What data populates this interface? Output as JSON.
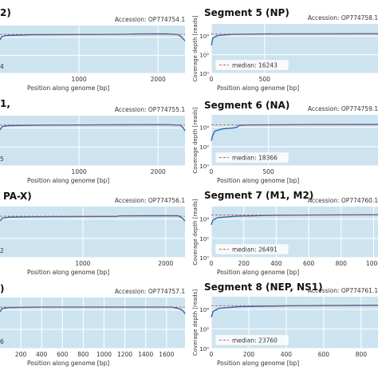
{
  "chart_data": [
    {
      "type": "area",
      "panel": "left-1",
      "title": "2)",
      "accession": "Accession: OP774754.1",
      "xlabel": "Position along genome [bp]",
      "ylabel": "",
      "xlim": [
        0,
        2341
      ],
      "xticks": [
        1000,
        2000
      ],
      "ylog": true,
      "ylim_log10": [
        0,
        5.3
      ],
      "y_tick_labels": [],
      "median_label": "",
      "median_value_log10": 4.32,
      "leftover_text": "4",
      "profile": [
        [
          0,
          3.7
        ],
        [
          20,
          4.05
        ],
        [
          80,
          4.2
        ],
        [
          400,
          4.28
        ],
        [
          1000,
          4.3
        ],
        [
          1500,
          4.32
        ],
        [
          1750,
          4.36
        ],
        [
          2100,
          4.38
        ],
        [
          2250,
          4.3
        ],
        [
          2300,
          4.0
        ],
        [
          2341,
          3.6
        ]
      ],
      "grid": true
    },
    {
      "type": "area",
      "panel": "left-2",
      "title": "1,",
      "accession": "Accession: OP774755.1",
      "xlabel": "Position along genome [bp]",
      "ylabel": "",
      "xlim": [
        0,
        2341
      ],
      "xticks": [
        1000,
        2000
      ],
      "ylog": true,
      "ylim_log10": [
        0,
        5.3
      ],
      "y_tick_labels": [],
      "median_label": "",
      "median_value_log10": 4.32,
      "leftover_text": "5",
      "profile": [
        [
          0,
          3.8
        ],
        [
          30,
          4.15
        ],
        [
          100,
          4.25
        ],
        [
          500,
          4.3
        ],
        [
          1500,
          4.33
        ],
        [
          2100,
          4.35
        ],
        [
          2280,
          4.3
        ],
        [
          2320,
          4.0
        ],
        [
          2341,
          3.7
        ]
      ],
      "grid": true
    },
    {
      "type": "area",
      "panel": "left-3",
      "title": "PA-X)",
      "accession": "Accession: OP774756.1",
      "xlabel": "Position along genome [bp]",
      "ylabel": "",
      "xlim": [
        0,
        2233
      ],
      "xticks": [
        1000,
        2000
      ],
      "ylog": true,
      "ylim_log10": [
        0,
        5.3
      ],
      "y_tick_labels": [],
      "median_label": "",
      "median_value_log10": 4.3,
      "leftover_text": "2",
      "profile": [
        [
          0,
          3.8
        ],
        [
          30,
          4.1
        ],
        [
          100,
          4.2
        ],
        [
          500,
          4.25
        ],
        [
          1400,
          4.27
        ],
        [
          1450,
          4.33
        ],
        [
          1800,
          4.35
        ],
        [
          2150,
          4.35
        ],
        [
          2200,
          4.1
        ],
        [
          2233,
          3.8
        ]
      ],
      "grid": true
    },
    {
      "type": "area",
      "panel": "left-4",
      "title": ")",
      "accession": "Accession: OP774757.1",
      "xlabel": "Position along genome [bp]",
      "ylabel": "",
      "xlim": [
        0,
        1778
      ],
      "xticks": [
        200,
        400,
        600,
        800,
        1000,
        1200,
        1400,
        1600
      ],
      "ylog": true,
      "ylim_log10": [
        0,
        5.3
      ],
      "y_tick_labels": [],
      "median_label": "",
      "median_value_log10": 4.3,
      "leftover_text": "6",
      "profile": [
        [
          0,
          3.8
        ],
        [
          20,
          4.15
        ],
        [
          80,
          4.25
        ],
        [
          400,
          4.3
        ],
        [
          1200,
          4.3
        ],
        [
          1650,
          4.3
        ],
        [
          1720,
          4.15
        ],
        [
          1760,
          3.9
        ],
        [
          1778,
          3.6
        ]
      ],
      "grid": true
    },
    {
      "type": "area",
      "panel": "right-1",
      "title": "Segment 5 (NP)",
      "accession": "Accession: OP774758.1",
      "xlabel": "Position along genome [bp]",
      "ylabel": "Coverage depth [reads]",
      "xlim": [
        0,
        1565
      ],
      "xticks": [
        0,
        500
      ],
      "ylog": true,
      "ylim_log10": [
        0,
        5.3
      ],
      "y_tick_labels": [
        {
          "exp": 0,
          "label": "10⁰"
        },
        {
          "exp": 2,
          "label": "10²"
        },
        {
          "exp": 4,
          "label": "10⁴"
        }
      ],
      "median_label": "median: 16243",
      "median_value_log10": 4.21,
      "profile": [
        [
          0,
          3.0
        ],
        [
          15,
          3.8
        ],
        [
          60,
          4.05
        ],
        [
          200,
          4.18
        ],
        [
          500,
          4.22
        ],
        [
          1000,
          4.24
        ],
        [
          1400,
          4.25
        ],
        [
          1565,
          4.25
        ]
      ],
      "grid": true
    },
    {
      "type": "area",
      "panel": "right-2",
      "title": "Segment 6 (NA)",
      "accession": "Accession: OP774759.1",
      "xlabel": "Position along genome [bp]",
      "ylabel": "Coverage depth [reads]",
      "xlim": [
        0,
        1458
      ],
      "xticks": [
        0,
        500
      ],
      "ylog": true,
      "ylim_log10": [
        0,
        5.3
      ],
      "y_tick_labels": [
        {
          "exp": 0,
          "label": "10⁰"
        },
        {
          "exp": 2,
          "label": "10²"
        },
        {
          "exp": 4,
          "label": "10⁴"
        }
      ],
      "median_label": "median: 18366",
      "median_value_log10": 4.26,
      "profile": [
        [
          0,
          2.6
        ],
        [
          10,
          3.1
        ],
        [
          30,
          3.6
        ],
        [
          100,
          3.85
        ],
        [
          200,
          3.95
        ],
        [
          230,
          4.05
        ],
        [
          240,
          4.2
        ],
        [
          300,
          4.25
        ],
        [
          800,
          4.28
        ],
        [
          1458,
          4.3
        ]
      ],
      "grid": true
    },
    {
      "type": "area",
      "panel": "right-3",
      "title": "Segment 7 (M1, M2)",
      "accession": "Accession: OP774760.1",
      "xlabel": "Position along genome [bp]",
      "ylabel": "Coverage depth [reads]",
      "xlim": [
        0,
        1027
      ],
      "xticks": [
        0,
        200,
        400,
        600,
        800,
        1000
      ],
      "ylog": true,
      "ylim_log10": [
        0,
        5.3
      ],
      "y_tick_labels": [
        {
          "exp": 0,
          "label": "10⁰"
        },
        {
          "exp": 2,
          "label": "10²"
        },
        {
          "exp": 4,
          "label": "10⁴"
        }
      ],
      "median_label": "median: 26491",
      "median_value_log10": 4.42,
      "profile": [
        [
          0,
          3.4
        ],
        [
          10,
          3.9
        ],
        [
          40,
          4.15
        ],
        [
          150,
          4.3
        ],
        [
          400,
          4.4
        ],
        [
          800,
          4.44
        ],
        [
          1027,
          4.45
        ]
      ],
      "grid": true
    },
    {
      "type": "area",
      "panel": "right-4",
      "title": "Segment 8 (NEP, NS1)",
      "accession": "Accession: OP774761.1",
      "xlabel": "Position along genome [bp]",
      "ylabel": "Coverage depth [reads]",
      "xlim": [
        0,
        890
      ],
      "xticks": [
        0,
        200,
        400,
        600,
        800
      ],
      "ylog": true,
      "ylim_log10": [
        0,
        5.3
      ],
      "y_tick_labels": [
        {
          "exp": 0,
          "label": "10⁰"
        },
        {
          "exp": 2,
          "label": "10²"
        },
        {
          "exp": 4,
          "label": "10⁴"
        }
      ],
      "median_label": "median: 23760",
      "median_value_log10": 4.38,
      "profile": [
        [
          0,
          3.2
        ],
        [
          10,
          3.8
        ],
        [
          40,
          4.1
        ],
        [
          150,
          4.28
        ],
        [
          400,
          4.36
        ],
        [
          890,
          4.42
        ]
      ],
      "grid": true
    }
  ],
  "colors": {
    "fill": "#cde4f0",
    "line": "#2f67a9",
    "median": "#d9534f",
    "grid": "#ffffff",
    "axis_bg": "#cde4f0"
  }
}
